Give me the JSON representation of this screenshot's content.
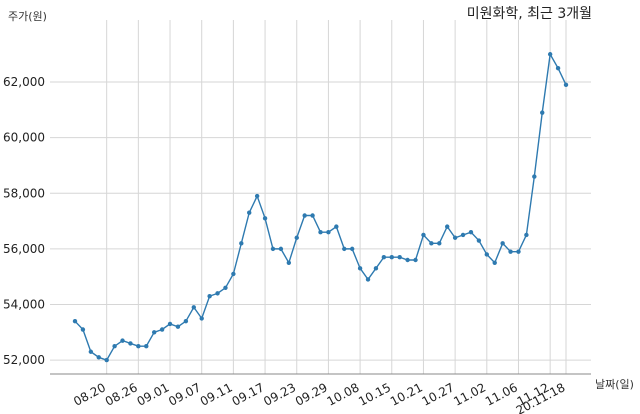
{
  "chart_data": {
    "type": "line",
    "title": "미원화학, 최근 3개월",
    "ylabel": "주가(원)",
    "xlabel": "날짜(일)",
    "ylim": [
      51500,
      63800
    ],
    "yticks": [
      52000,
      54000,
      56000,
      58000,
      60000,
      62000
    ],
    "ytick_labels": [
      "52,000",
      "54,000",
      "56,000",
      "58,000",
      "60,000",
      "62,000"
    ],
    "xtick_labels": [
      "08.20",
      "08.26",
      "09.01",
      "09.07",
      "09.11",
      "09.17",
      "09.23",
      "09.29",
      "10.08",
      "10.15",
      "10.21",
      "10.27",
      "11.02",
      "11.06",
      "11.12",
      "20.11.18"
    ],
    "grid": true,
    "color": "#2e7ab0",
    "series": [
      {
        "values": [
          53400,
          53100,
          52300,
          52100,
          52000,
          52500,
          52700,
          52600,
          52500,
          52500,
          53000,
          53100,
          53300,
          53200,
          53400,
          53900,
          53500,
          54300,
          54400,
          54600,
          55100,
          56200,
          57300,
          57900,
          57100,
          56000,
          56000,
          55500,
          56400,
          57200,
          57200,
          56600,
          56600,
          56800,
          56000,
          56000,
          55300,
          54900,
          55300,
          55700,
          55700,
          55700,
          55600,
          55600,
          56500,
          56200,
          56200,
          56800,
          56400,
          56500,
          56600,
          56300,
          55800,
          55500,
          56200,
          55900,
          55900,
          56500,
          58600,
          60900,
          63000,
          62500,
          61900
        ]
      }
    ]
  }
}
